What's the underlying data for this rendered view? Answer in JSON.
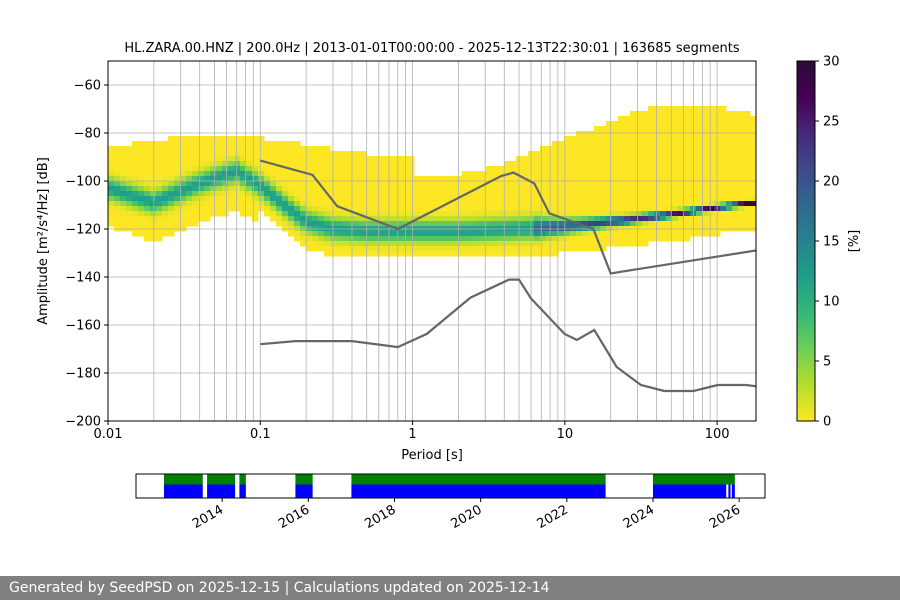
{
  "chart_data": [
    {
      "type": "heatmap",
      "title": "HL.ZARA.00.HNZ | 200.0Hz | 2013-01-01T00:00:00 - 2025-12-13T22:30:01 | 163685 segments",
      "xlabel": "Period [s]",
      "ylabel": "Amplitude [m²/s⁴/Hz] [dB]",
      "x_scale": "log",
      "xlim": [
        0.01,
        180
      ],
      "ylim": [
        -200,
        -50
      ],
      "x_ticks": [
        0.01,
        0.1,
        1,
        10,
        100
      ],
      "x_tick_labels": [
        "0.01",
        "0.1",
        "1",
        "10",
        "100"
      ],
      "y_ticks": [
        -200,
        -180,
        -160,
        -140,
        -120,
        -100,
        -80,
        -60
      ],
      "y_tick_labels": [
        "−200",
        "−180",
        "−160",
        "−140",
        "−120",
        "−100",
        "−80",
        "−60"
      ],
      "grid": true,
      "colorbar": {
        "label": "[%]",
        "min": 0,
        "max": 30,
        "ticks": [
          0,
          5,
          10,
          15,
          20,
          25,
          30
        ],
        "tick_labels": [
          "0",
          "5",
          "10",
          "15",
          "20",
          "25",
          "30"
        ],
        "colormap": "viridis_r"
      },
      "density_ridge": {
        "period": [
          0.01,
          0.02,
          0.04,
          0.07,
          0.1,
          0.15,
          0.2,
          0.3,
          0.5,
          1,
          2,
          5,
          10,
          20,
          50,
          100,
          180
        ],
        "mode_db": [
          -103,
          -109,
          -101,
          -96,
          -102,
          -111,
          -117,
          -120,
          -121,
          -121,
          -121,
          -120,
          -119,
          -117,
          -114,
          -111,
          -109
        ]
      },
      "series": [
        {
          "name": "NHNM",
          "x": [
            0.1,
            0.22,
            0.32,
            0.8,
            3.8,
            4.6,
            6.3,
            7.9,
            15.4,
            20,
            354.8
          ],
          "y": [
            -91.5,
            -97.4,
            -110.5,
            -120,
            -98,
            -96.5,
            -101,
            -113.5,
            -120,
            -138.5,
            -126
          ]
        },
        {
          "name": "NLNM",
          "x": [
            0.1,
            0.17,
            0.4,
            0.8,
            1.24,
            2.4,
            4.3,
            5,
            6,
            10,
            12,
            15.6,
            21.9,
            31.6,
            45,
            70,
            101,
            154,
            328
          ],
          "y": [
            -168,
            -166.7,
            -166.7,
            -169.2,
            -163.7,
            -148.6,
            -141.1,
            -141.1,
            -149,
            -163.8,
            -166.2,
            -162.1,
            -177.5,
            -185,
            -187.5,
            -187.5,
            -185,
            -185,
            -187.5
          ]
        }
      ]
    },
    {
      "type": "timeline",
      "x_ticks": [
        2014,
        2016,
        2018,
        2020,
        2022,
        2024,
        2026
      ],
      "x_tick_labels": [
        "2014",
        "2016",
        "2018",
        "2020",
        "2022",
        "2024",
        "2026"
      ],
      "xlim": [
        2012.0,
        2026.6
      ],
      "colors": {
        "available": "#008000",
        "processed": "#0000ff"
      },
      "available_spans": [
        [
          2012.65,
          2013.55
        ],
        [
          2013.65,
          2014.3
        ],
        [
          2014.4,
          2014.55
        ],
        [
          2015.7,
          2016.1
        ],
        [
          2017.0,
          2022.9
        ],
        [
          2024.0,
          2025.9
        ]
      ],
      "processed_spans": [
        [
          2012.65,
          2013.55
        ],
        [
          2013.65,
          2014.3
        ],
        [
          2014.4,
          2014.55
        ],
        [
          2015.7,
          2016.1
        ],
        [
          2017.0,
          2022.9
        ],
        [
          2024.0,
          2025.7
        ],
        [
          2025.75,
          2025.8
        ],
        [
          2025.83,
          2025.9
        ]
      ]
    }
  ],
  "footer": {
    "text": "Generated by SeedPSD on 2025-12-15 | Calculations updated on 2025-12-14"
  }
}
